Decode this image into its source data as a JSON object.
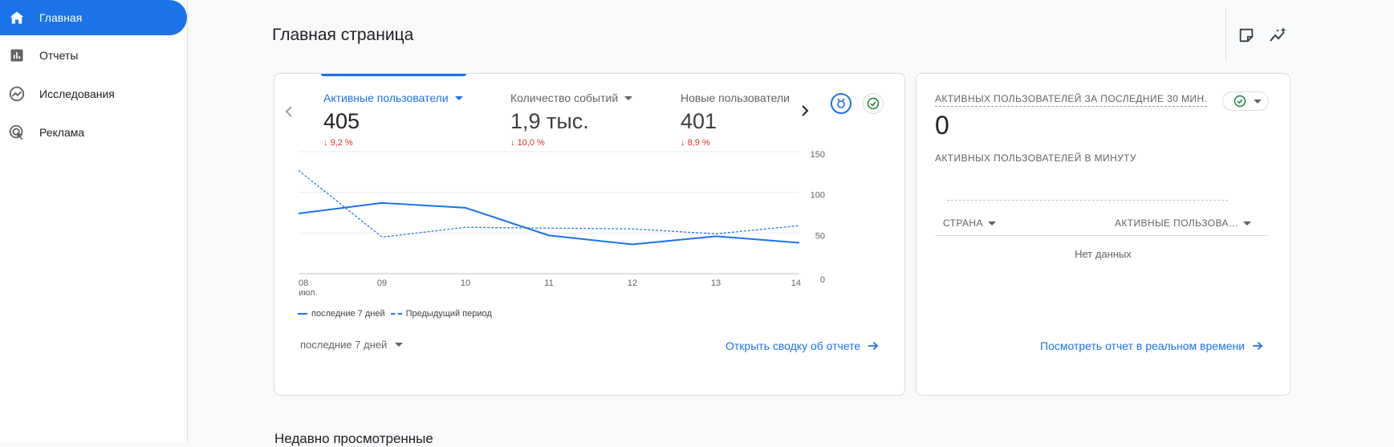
{
  "sidebar": {
    "items": [
      {
        "label": "Главная",
        "icon": "home-icon",
        "active": true
      },
      {
        "label": "Отчеты",
        "icon": "bar-chart-icon",
        "active": false
      },
      {
        "label": "Исследования",
        "icon": "explore-icon",
        "active": false
      },
      {
        "label": "Реклама",
        "icon": "advertising-icon",
        "active": false
      }
    ]
  },
  "header": {
    "title": "Главная страница",
    "icons": [
      "note-icon",
      "insights-icon"
    ]
  },
  "overview_card": {
    "metrics": [
      {
        "name": "Активные пользователи",
        "value": "405",
        "delta": "9,2 %",
        "active": true
      },
      {
        "name": "Количество событий",
        "value": "1,9 тыс.",
        "delta": "10,0 %",
        "active": false
      },
      {
        "name": "Новые пользователи",
        "value": "401",
        "delta": "8,9 %",
        "active": false
      }
    ],
    "legend": {
      "current": "последние 7 дней",
      "previous": "Предыдущий период"
    },
    "date_range": "последние 7 дней",
    "link": "Открыть сводку об отчете",
    "accent": "#1a73e8",
    "negative_color": "#d93025"
  },
  "chart_data": {
    "type": "line",
    "x": [
      "08",
      "09",
      "10",
      "11",
      "12",
      "13",
      "14"
    ],
    "x_sublabel": "июл.",
    "yticks": [
      "150",
      "100",
      "50",
      "0"
    ],
    "ylim": [
      0,
      150
    ],
    "series": [
      {
        "name": "последние 7 дней",
        "style": "solid",
        "values": [
          74,
          87,
          81,
          47,
          36,
          46,
          38
        ]
      },
      {
        "name": "Предыдущий период",
        "style": "dashed",
        "values": [
          127,
          45,
          57,
          56,
          55,
          49,
          59
        ]
      }
    ],
    "grid": true,
    "legend": "bottom-left"
  },
  "realtime_card": {
    "title": "АКТИВНЫХ ПОЛЬЗОВАТЕЛЕЙ ЗА ПОСЛЕДНИЕ 30 МИН.",
    "value": "0",
    "subtitle": "АКТИВНЫХ ПОЛЬЗОВАТЕЛЕЙ В МИНУТУ",
    "columns": [
      "СТРАНА",
      "АКТИВНЫЕ ПОЛЬЗОВА…"
    ],
    "empty_text": "Нет данных",
    "link": "Посмотреть отчет в реальном времени"
  },
  "recent": {
    "title": "Недавно просмотренные"
  }
}
